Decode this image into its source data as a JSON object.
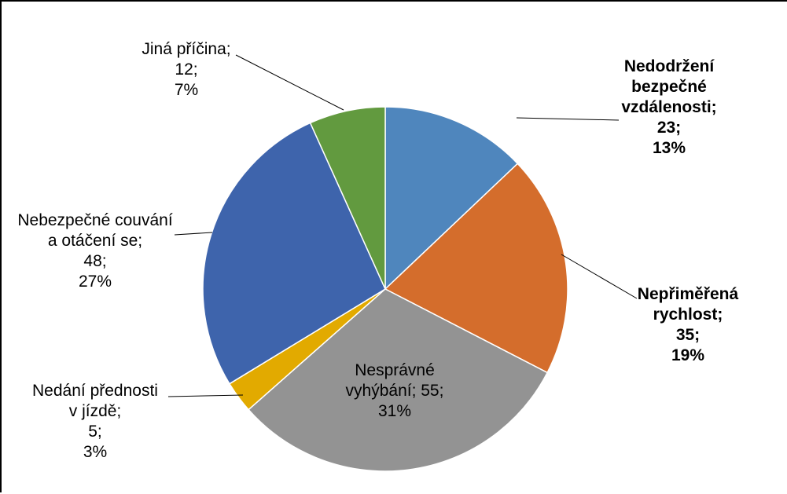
{
  "chart_data": {
    "type": "pie",
    "title": "",
    "legend": "none",
    "slices": [
      {
        "label_lines": [
          "Nedodržení",
          "bezpečné",
          "vzdálenosti;"
        ],
        "value": 23,
        "value_text": "23;",
        "percent_text": "13%",
        "color": "#4f86bd",
        "bold": true
      },
      {
        "label_lines": [
          "Nepřiměřená",
          "rychlost;"
        ],
        "value": 35,
        "value_text": "35;",
        "percent_text": "19%",
        "color": "#d46d2c",
        "bold": true
      },
      {
        "label_lines": [
          "Nesprávné",
          "vyhýbání; 55;"
        ],
        "value": 55,
        "value_text": "",
        "percent_text": "31%",
        "color": "#939393",
        "bold": false
      },
      {
        "label_lines": [
          "Nedání přednosti",
          "v jízdě;"
        ],
        "value": 5,
        "value_text": "5;",
        "percent_text": "3%",
        "color": "#e2aa00",
        "bold": false
      },
      {
        "label_lines": [
          "Nebezpečné couvání",
          "a otáčení se;"
        ],
        "value": 48,
        "value_text": "48;",
        "percent_text": "27%",
        "color": "#3e64ac",
        "bold": false
      },
      {
        "label_lines": [
          "Jiná příčina;"
        ],
        "value": 12,
        "value_text": "12;",
        "percent_text": "7%",
        "color": "#629a3f",
        "bold": false
      }
    ]
  }
}
